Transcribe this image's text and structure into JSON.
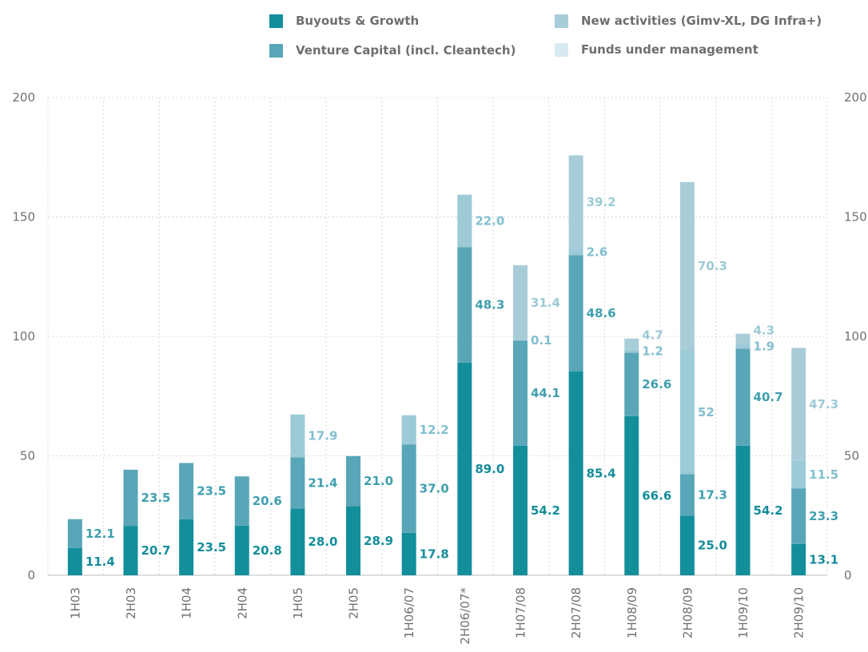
{
  "chart_data": {
    "type": "bar",
    "stacked": true,
    "categories": [
      "1H03",
      "2H03",
      "1H04",
      "2H04",
      "1H05",
      "2H05",
      "1H06/07",
      "2H06/07*",
      "1H07/08",
      "2H07/08",
      "1H08/09",
      "2H08/09",
      "1H09/10",
      "2H09/10"
    ],
    "series": [
      {
        "name": "Buyouts & Growth",
        "color": "#138f9b",
        "label_color": "#148d9a",
        "values": [
          11.4,
          20.7,
          23.5,
          20.8,
          28.0,
          28.9,
          17.8,
          89.0,
          54.2,
          85.4,
          66.6,
          25.0,
          54.2,
          13.1
        ],
        "labels": [
          "11.4",
          "20.7",
          "23.5",
          "20.8",
          "28.0",
          "28.9",
          "17.8",
          "89.0",
          "54.2",
          "85.4",
          "66.6",
          "25.0",
          "54.2",
          "13.1"
        ]
      },
      {
        "name": "Venture Capital (incl. Cleantech)",
        "color": "#58a6b7",
        "label_color": "#3f9fae",
        "values": [
          12.1,
          23.5,
          23.5,
          20.6,
          21.4,
          21.0,
          37.0,
          48.3,
          44.1,
          48.6,
          26.6,
          17.3,
          40.7,
          23.3
        ],
        "labels": [
          "12.1",
          "23.5",
          "23.5",
          "20.6",
          "21.4",
          "21.0",
          "37.0",
          "48.3",
          "44.1",
          "48.6",
          "26.6",
          "17.3",
          "40.7",
          "23.3"
        ]
      },
      {
        "name": "New activities (Gimv-XL, DG Infra+)",
        "color": "#9ccad6",
        "label_color": "#82bfd0",
        "values": [
          0,
          0,
          0,
          0,
          17.9,
          0,
          12.2,
          22.0,
          0.1,
          2.6,
          1.2,
          52,
          1.9,
          11.5
        ],
        "labels": [
          "",
          "",
          "",
          "",
          "17.9",
          "",
          "12.2",
          "22.0",
          "0.1",
          "2.6",
          "1.2",
          "52",
          "1.9",
          "11.5"
        ]
      },
      {
        "name": "Funds under management",
        "color": "#a8cdd9",
        "label_color": "#9ccad6",
        "values": [
          0,
          0,
          0,
          0,
          0,
          0,
          0,
          0,
          31.4,
          39.2,
          4.7,
          70.3,
          4.3,
          47.3
        ],
        "labels": [
          "",
          "",
          "",
          "",
          "",
          "",
          "",
          "",
          "31.4",
          "39.2",
          "4.7",
          "70.3",
          "4.3",
          "47.3"
        ]
      }
    ],
    "legend_swatches": [
      "#138f9b",
      "#58a6b7",
      "#a8cdd9",
      "#d7eaf0"
    ],
    "yticks": [
      "0",
      "50",
      "100",
      "150",
      "200"
    ],
    "ylim": [
      0,
      200
    ],
    "grid": true,
    "legend_position": "top",
    "title": "",
    "xlabel": "",
    "ylabel": ""
  }
}
